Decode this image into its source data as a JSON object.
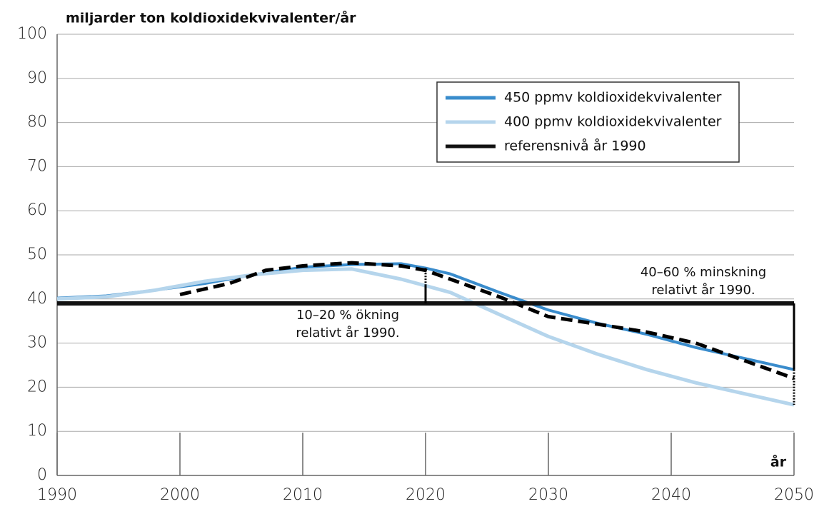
{
  "chart_data": {
    "type": "line",
    "title": "miljarder ton koldioxidekvivalenter/år",
    "x_label": "år",
    "xlim": [
      1990,
      2050
    ],
    "xticks": [
      1990,
      2000,
      2010,
      2020,
      2030,
      2040,
      2050
    ],
    "ylim": [
      0,
      100
    ],
    "yticks": [
      0,
      10,
      20,
      30,
      40,
      50,
      60,
      70,
      80,
      90,
      100
    ],
    "grid": true,
    "legend": "upper right",
    "series": [
      {
        "name": "450 ppmv koldioxidekvivalenter",
        "color": "#3a8ccc",
        "style": "solid",
        "x": [
          1990,
          1994,
          1998,
          2002,
          2006,
          2010,
          2014,
          2018,
          2020,
          2022,
          2026,
          2030,
          2034,
          2038,
          2042,
          2046,
          2050
        ],
        "values": [
          40.2,
          40.7,
          42,
          43.5,
          45.5,
          47.2,
          47.8,
          48,
          47,
          45.7,
          41.5,
          37.5,
          34.5,
          32,
          29,
          26.5,
          24
        ]
      },
      {
        "name": "400 ppmv koldioxidekvivalenter",
        "color": "#b5d5ec",
        "style": "solid",
        "x": [
          1990,
          1994,
          1998,
          2002,
          2006,
          2010,
          2014,
          2018,
          2020,
          2022,
          2026,
          2030,
          2034,
          2038,
          2042,
          2046,
          2050
        ],
        "values": [
          40,
          40.5,
          42,
          44,
          45.5,
          46.5,
          46.8,
          44.5,
          43,
          41.5,
          36.5,
          31.5,
          27.5,
          24,
          21,
          18.5,
          16
        ]
      },
      {
        "name": "referensnivå år 1990",
        "color": "#111111",
        "style": "solid",
        "x": [
          1990,
          2050
        ],
        "values": [
          39,
          39
        ]
      },
      {
        "color": "#000000",
        "style": "dashed",
        "x": [
          2000,
          2004,
          2007,
          2010,
          2014,
          2018,
          2020,
          2022,
          2026,
          2030,
          2034,
          2038,
          2042,
          2046,
          2050
        ],
        "values": [
          41,
          43.5,
          46.5,
          47.5,
          48.2,
          47.5,
          46.5,
          44.5,
          40.5,
          36,
          34.3,
          32.5,
          30,
          26,
          22
        ]
      }
    ],
    "annotations": [
      "10–20 % ökning",
      "relativt år 1990.",
      "40–60 % minskning",
      "relativt år 1990."
    ]
  }
}
